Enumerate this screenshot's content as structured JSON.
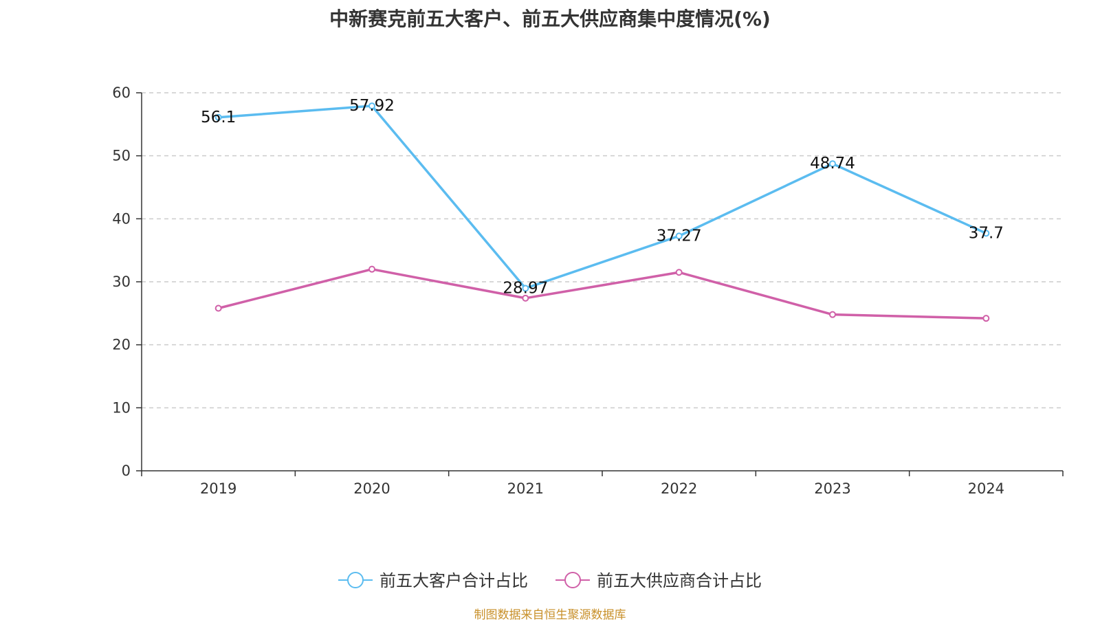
{
  "chart_data": {
    "type": "line",
    "title": "中新赛克前五大客户、前五大供应商集中度情况(%)",
    "xlabel": "",
    "ylabel": "",
    "categories": [
      "2019",
      "2020",
      "2021",
      "2022",
      "2023",
      "2024"
    ],
    "ylim": [
      0,
      60
    ],
    "yticks": [
      0,
      10,
      20,
      30,
      40,
      50,
      60
    ],
    "grid": true,
    "legend_position": "bottom-center",
    "series": [
      {
        "name": "前五大客户合计占比",
        "color": "#5bbcf0",
        "values": [
          56.1,
          57.92,
          28.97,
          37.27,
          48.74,
          37.7
        ],
        "labels": [
          "56.1",
          "57.92",
          "28.97",
          "37.27",
          "48.74",
          "37.7"
        ],
        "show_labels": true
      },
      {
        "name": "前五大供应商合计占比",
        "color": "#d060a8",
        "values": [
          25.8,
          32.0,
          27.4,
          31.5,
          24.8,
          24.2
        ],
        "show_labels": false
      }
    ]
  },
  "source_note": "制图数据来自恒生聚源数据库"
}
